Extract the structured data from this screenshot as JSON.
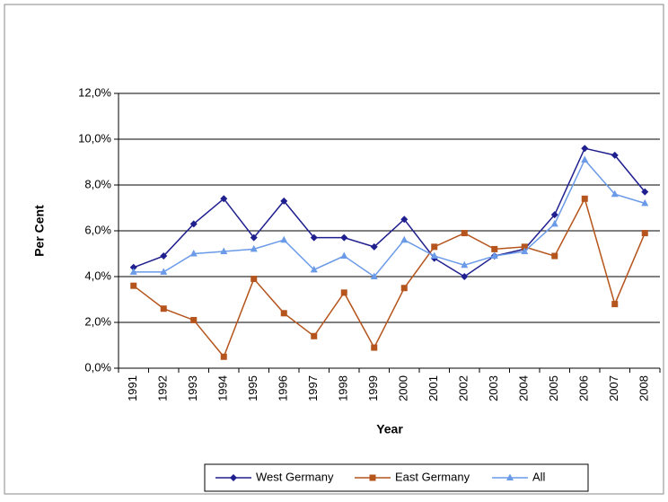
{
  "chart_data": {
    "type": "line",
    "x_label": "Year",
    "y_label": "Per Cent",
    "categories": [
      "1991",
      "1992",
      "1993",
      "1994",
      "1995",
      "1996",
      "1997",
      "1998",
      "1999",
      "2000",
      "2001",
      "2002",
      "2003",
      "2004",
      "2005",
      "2006",
      "2007",
      "2008"
    ],
    "series": [
      {
        "name": "West Germany",
        "color": "#1f1f8f",
        "marker": "diamond",
        "values": [
          4.4,
          4.9,
          6.3,
          7.4,
          5.7,
          7.3,
          5.7,
          5.7,
          5.3,
          6.5,
          4.8,
          4.0,
          4.9,
          5.2,
          6.7,
          9.6,
          9.3,
          7.7
        ]
      },
      {
        "name": "East Germany",
        "color": "#b5541c",
        "marker": "square",
        "values": [
          3.6,
          2.6,
          2.1,
          0.5,
          3.9,
          2.4,
          1.4,
          3.3,
          0.9,
          3.5,
          5.3,
          5.9,
          5.2,
          5.3,
          4.9,
          7.4,
          2.8,
          5.9
        ]
      },
      {
        "name": "All",
        "color": "#6a9ae8",
        "marker": "triangle",
        "values": [
          4.2,
          4.2,
          5.0,
          5.1,
          5.2,
          5.6,
          4.3,
          4.9,
          4.0,
          5.6,
          4.9,
          4.5,
          4.9,
          5.1,
          6.3,
          9.1,
          7.6,
          7.2
        ]
      }
    ],
    "ylim": [
      0,
      12
    ],
    "yticks": [
      {
        "value": 0,
        "label": "0,0%"
      },
      {
        "value": 2,
        "label": "2,0%"
      },
      {
        "value": 4,
        "label": "4,0%"
      },
      {
        "value": 6,
        "label": "6,0%"
      },
      {
        "value": 8,
        "label": "8,0%"
      },
      {
        "value": 10,
        "label": "10,0%"
      },
      {
        "value": 12,
        "label": "12,0%"
      }
    ],
    "grid": true,
    "legend": "bottom"
  }
}
